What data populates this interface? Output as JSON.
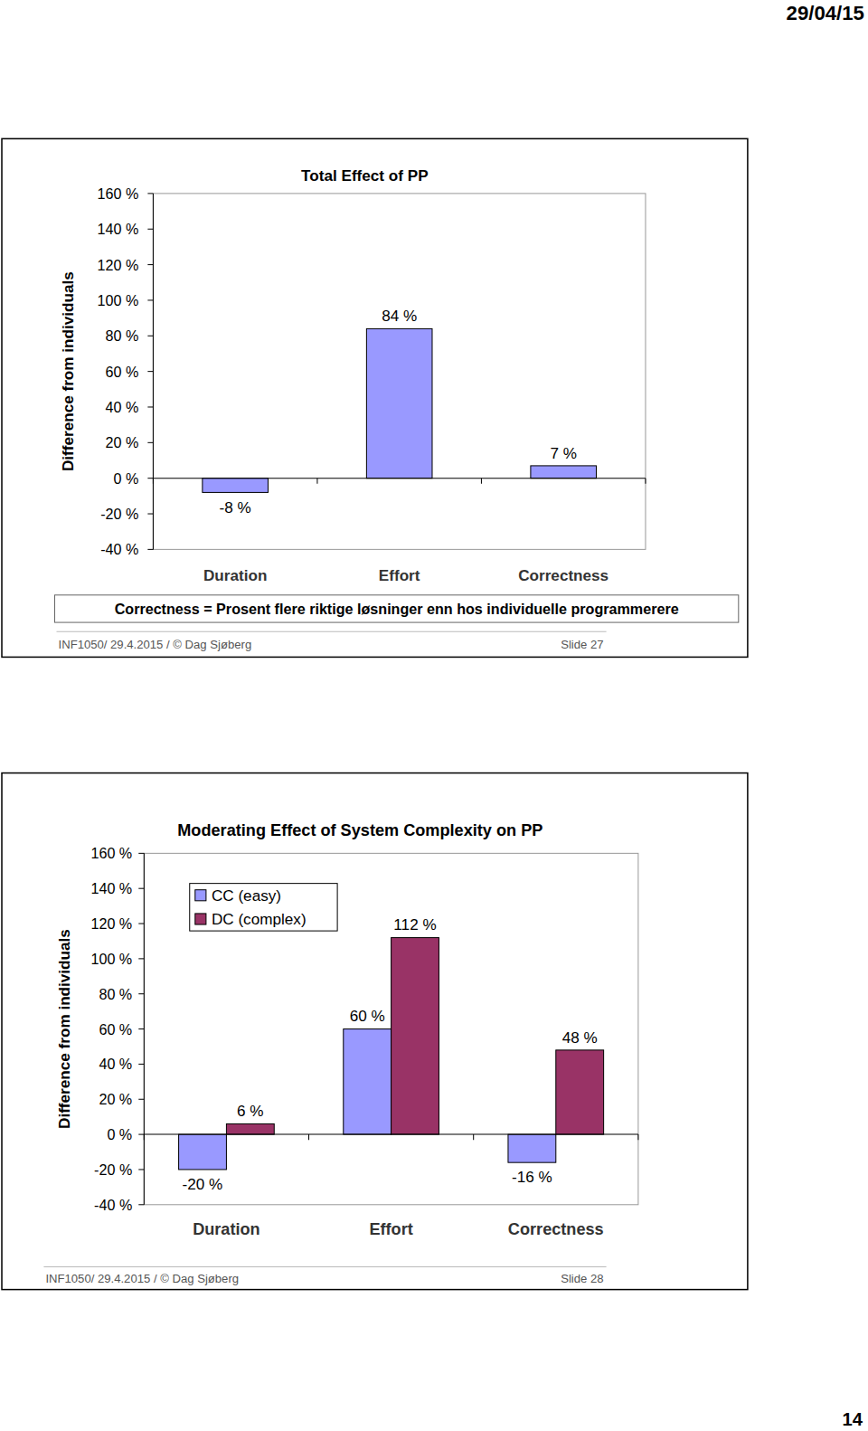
{
  "page": {
    "date": "29/04/15",
    "number": "14"
  },
  "slides": [
    {
      "footer": "INF1050/ 29.4.2015 / © Dag Sjøberg",
      "slide": "Slide 27"
    },
    {
      "footer": "INF1050/ 29.4.2015 / © Dag Sjøberg",
      "slide": "Slide 28"
    }
  ],
  "chart_data": [
    {
      "type": "bar",
      "title": "Total Effect of PP",
      "ylabel": "Difference from individuals",
      "categories": [
        "Duration",
        "Effort",
        "Correctness"
      ],
      "values": [
        -8,
        84,
        7
      ],
      "value_labels": [
        "-8 %",
        "84 %",
        "7 %"
      ],
      "color": "#9999ff",
      "data_labels": true,
      "annotations": [
        "Correctness = Prosent flere riktige løsninger enn hos individuelle programmerere"
      ],
      "ylim": [
        -40,
        160
      ],
      "yticks": [
        {
          "value": -40,
          "label": "-40 %"
        },
        {
          "value": -20,
          "label": "-20 %"
        },
        {
          "value": 0,
          "label": "0 %"
        },
        {
          "value": 20,
          "label": "20 %"
        },
        {
          "value": 40,
          "label": "40 %"
        },
        {
          "value": 60,
          "label": "60 %"
        },
        {
          "value": 80,
          "label": "80 %"
        },
        {
          "value": 100,
          "label": "100 %"
        },
        {
          "value": 120,
          "label": "120 %"
        },
        {
          "value": 140,
          "label": "140 %"
        },
        {
          "value": 160,
          "label": "160 %"
        }
      ]
    },
    {
      "type": "bar",
      "title": "Moderating Effect of System Complexity on PP",
      "ylabel": "Difference from individuals",
      "categories": [
        "Duration",
        "Effort",
        "Correctness"
      ],
      "series": [
        {
          "name": "CC (easy)",
          "color": "#9999ff",
          "values": [
            -20,
            60,
            -16
          ],
          "value_labels": [
            "-20 %",
            "60 %",
            "-16 %"
          ]
        },
        {
          "name": "DC (complex)",
          "color": "#993366",
          "values": [
            6,
            112,
            48
          ],
          "value_labels": [
            "6 %",
            "112 %",
            "48 %"
          ]
        }
      ],
      "data_labels": true,
      "legend": "top-left",
      "ylim": [
        -40,
        160
      ],
      "yticks": [
        {
          "value": -40,
          "label": "-40 %"
        },
        {
          "value": -20,
          "label": "-20 %"
        },
        {
          "value": 0,
          "label": "0 %"
        },
        {
          "value": 20,
          "label": "20 %"
        },
        {
          "value": 40,
          "label": "40 %"
        },
        {
          "value": 60,
          "label": "60 %"
        },
        {
          "value": 80,
          "label": "80 %"
        },
        {
          "value": 100,
          "label": "100 %"
        },
        {
          "value": 120,
          "label": "120 %"
        },
        {
          "value": 140,
          "label": "140 %"
        },
        {
          "value": 160,
          "label": "160 %"
        }
      ]
    }
  ]
}
